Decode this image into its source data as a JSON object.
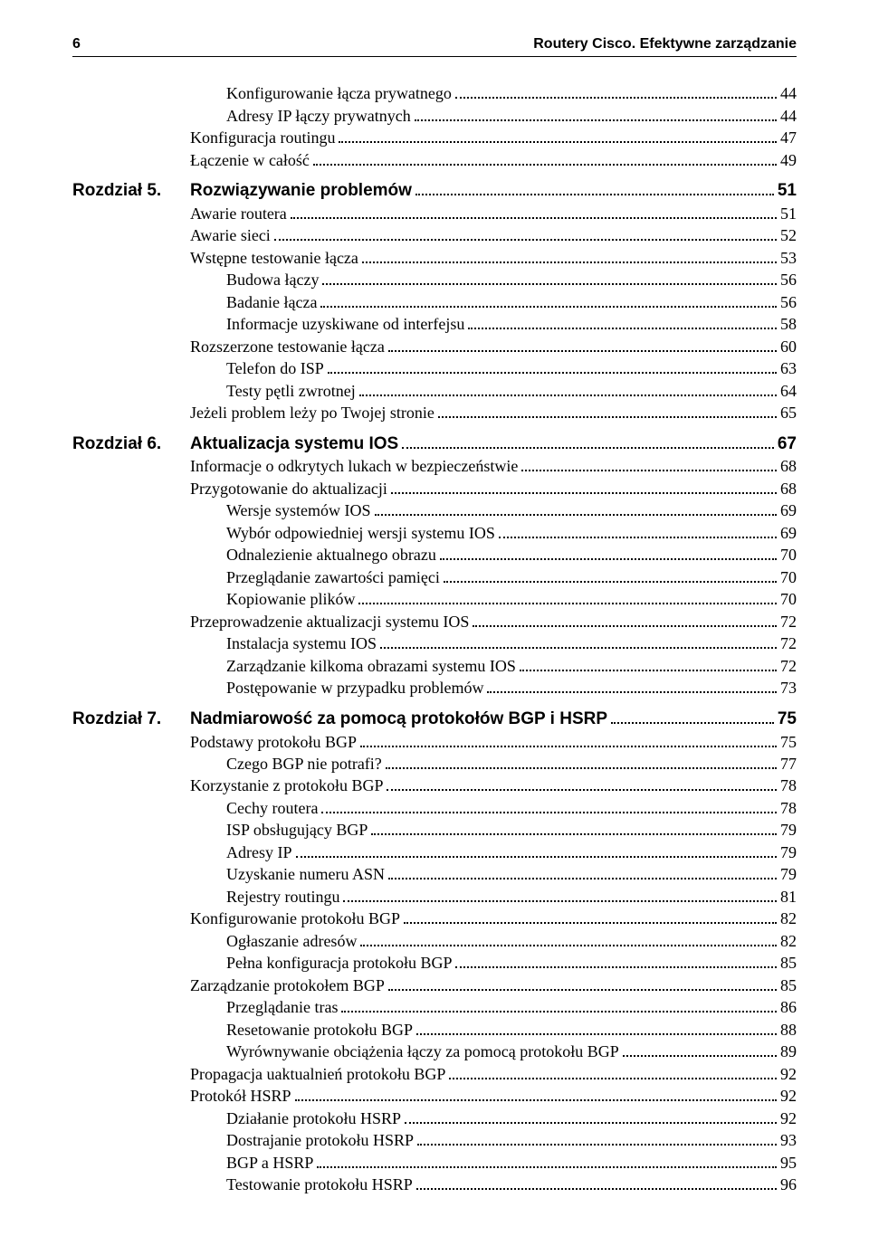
{
  "header": {
    "page_number": "6",
    "running_title": "Routery Cisco. Efektywne zarządzanie"
  },
  "toc": [
    {
      "level": "sub",
      "label": "Konfigurowanie łącza prywatnego",
      "page": "44"
    },
    {
      "level": "sub",
      "label": "Adresy IP łączy prywatnych",
      "page": "44"
    },
    {
      "level": "sec",
      "label": "Konfiguracja routingu",
      "page": "47"
    },
    {
      "level": "sec",
      "label": "Łączenie w całość",
      "page": "49"
    },
    {
      "level": "chap",
      "prefix": "Rozdział 5.",
      "label": "Rozwiązywanie problemów",
      "page": "51"
    },
    {
      "level": "sec",
      "label": "Awarie routera",
      "page": "51"
    },
    {
      "level": "sec",
      "label": "Awarie sieci",
      "page": "52"
    },
    {
      "level": "sec",
      "label": "Wstępne testowanie łącza",
      "page": "53"
    },
    {
      "level": "sub",
      "label": "Budowa łączy",
      "page": "56"
    },
    {
      "level": "sub",
      "label": "Badanie łącza",
      "page": "56"
    },
    {
      "level": "sub",
      "label": "Informacje uzyskiwane od interfejsu",
      "page": "58"
    },
    {
      "level": "sec",
      "label": "Rozszerzone testowanie łącza",
      "page": "60"
    },
    {
      "level": "sub",
      "label": "Telefon do ISP",
      "page": "63"
    },
    {
      "level": "sub",
      "label": "Testy pętli zwrotnej",
      "page": "64"
    },
    {
      "level": "sec",
      "label": "Jeżeli problem leży po Twojej stronie",
      "page": "65"
    },
    {
      "level": "chap",
      "prefix": "Rozdział 6.",
      "label": "Aktualizacja systemu IOS",
      "page": "67"
    },
    {
      "level": "sec",
      "label": "Informacje o odkrytych lukach w bezpieczeństwie",
      "page": "68"
    },
    {
      "level": "sec",
      "label": "Przygotowanie do aktualizacji",
      "page": "68"
    },
    {
      "level": "sub",
      "label": "Wersje systemów IOS",
      "page": "69"
    },
    {
      "level": "sub",
      "label": "Wybór odpowiedniej wersji systemu IOS",
      "page": "69"
    },
    {
      "level": "sub",
      "label": "Odnalezienie aktualnego obrazu",
      "page": "70"
    },
    {
      "level": "sub",
      "label": "Przeglądanie zawartości pamięci",
      "page": "70"
    },
    {
      "level": "sub",
      "label": "Kopiowanie plików",
      "page": "70"
    },
    {
      "level": "sec",
      "label": "Przeprowadzenie aktualizacji systemu IOS",
      "page": "72"
    },
    {
      "level": "sub",
      "label": "Instalacja systemu IOS",
      "page": "72"
    },
    {
      "level": "sub",
      "label": "Zarządzanie kilkoma obrazami systemu IOS",
      "page": "72"
    },
    {
      "level": "sub",
      "label": "Postępowanie w przypadku problemów",
      "page": "73"
    },
    {
      "level": "chap",
      "prefix": "Rozdział 7.",
      "label": "Nadmiarowość za pomocą protokołów BGP i HSRP",
      "page": "75"
    },
    {
      "level": "sec",
      "label": "Podstawy protokołu BGP",
      "page": "75"
    },
    {
      "level": "sub",
      "label": "Czego BGP nie potrafi?",
      "page": "77"
    },
    {
      "level": "sec",
      "label": "Korzystanie z protokołu BGP",
      "page": "78"
    },
    {
      "level": "sub",
      "label": "Cechy routera",
      "page": "78"
    },
    {
      "level": "sub",
      "label": "ISP obsługujący BGP",
      "page": "79"
    },
    {
      "level": "sub",
      "label": "Adresy IP",
      "page": "79"
    },
    {
      "level": "sub",
      "label": "Uzyskanie numeru ASN",
      "page": "79"
    },
    {
      "level": "sub",
      "label": "Rejestry routingu",
      "page": "81"
    },
    {
      "level": "sec",
      "label": "Konfigurowanie protokołu BGP",
      "page": "82"
    },
    {
      "level": "sub",
      "label": "Ogłaszanie adresów",
      "page": "82"
    },
    {
      "level": "sub",
      "label": "Pełna konfiguracja protokołu BGP",
      "page": "85"
    },
    {
      "level": "sec",
      "label": "Zarządzanie protokołem BGP",
      "page": "85"
    },
    {
      "level": "sub",
      "label": "Przeglądanie tras",
      "page": "86"
    },
    {
      "level": "sub",
      "label": "Resetowanie protokołu BGP",
      "page": "88"
    },
    {
      "level": "sub",
      "label": "Wyrównywanie obciążenia łączy za pomocą protokołu BGP",
      "page": "89"
    },
    {
      "level": "sec",
      "label": "Propagacja uaktualnień protokołu BGP",
      "page": "92"
    },
    {
      "level": "sec",
      "label": "Protokół HSRP",
      "page": "92"
    },
    {
      "level": "sub",
      "label": "Działanie protokołu HSRP",
      "page": "92"
    },
    {
      "level": "sub",
      "label": "Dostrajanie protokołu HSRP",
      "page": "93"
    },
    {
      "level": "sub",
      "label": "BGP a HSRP",
      "page": "95"
    },
    {
      "level": "sub",
      "label": "Testowanie protokołu HSRP",
      "page": "96"
    }
  ]
}
